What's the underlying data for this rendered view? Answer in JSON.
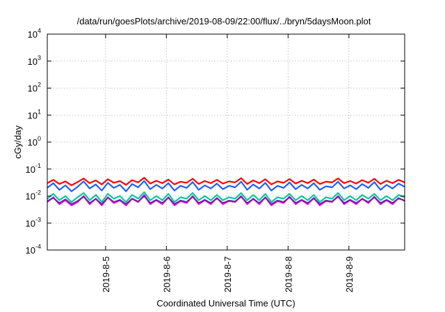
{
  "chart_data": {
    "type": "line",
    "title": "/data/run/goesPlots/archive/2019-08-09/22:00/flux/../bryn/5daysMoon.plot",
    "xlabel": "Coordinated Universal Time (UTC)",
    "ylabel": "cGy/day",
    "yscale": "log",
    "ylim": [
      0.0001,
      10000
    ],
    "xlim": [
      "2019-08-04 01:00",
      "2019-08-09 22:00"
    ],
    "y_tick_labels": [
      {
        "base": "10",
        "exp": "-4"
      },
      {
        "base": "10",
        "exp": "-3"
      },
      {
        "base": "10",
        "exp": "-2"
      },
      {
        "base": "10",
        "exp": "-1"
      },
      {
        "base": "10",
        "exp": "0"
      },
      {
        "base": "10",
        "exp": "1"
      },
      {
        "base": "10",
        "exp": "2"
      },
      {
        "base": "10",
        "exp": "3"
      },
      {
        "base": "10",
        "exp": "4"
      }
    ],
    "x_ticks": [
      {
        "date": "2019-08-05",
        "label": "2019-8-5"
      },
      {
        "date": "2019-08-06",
        "label": "2019-8-6"
      },
      {
        "date": "2019-08-07",
        "label": "2019-8-7"
      },
      {
        "date": "2019-08-08",
        "label": "2019-8-8"
      },
      {
        "date": "2019-08-09",
        "label": "2019-8-9"
      }
    ],
    "grid": true,
    "series": [
      {
        "color": "#ff0000",
        "values": [
          0.03,
          0.04,
          0.028,
          0.035,
          0.025,
          0.033,
          0.045,
          0.03,
          0.038,
          0.027,
          0.042,
          0.031,
          0.036,
          0.026,
          0.039,
          0.032,
          0.048,
          0.029,
          0.037,
          0.03,
          0.041,
          0.027,
          0.034,
          0.031,
          0.044,
          0.028,
          0.036,
          0.03,
          0.04,
          0.029,
          0.035,
          0.032,
          0.046,
          0.028,
          0.038,
          0.03,
          0.042,
          0.027,
          0.035,
          0.031,
          0.043,
          0.029,
          0.037,
          0.03,
          0.041,
          0.028,
          0.034,
          0.032,
          0.045,
          0.03,
          0.036,
          0.029,
          0.039,
          0.031,
          0.044,
          0.028,
          0.037,
          0.03,
          0.04,
          0.032
        ]
      },
      {
        "color": "#1f5fff",
        "values": [
          0.02,
          0.03,
          0.017,
          0.025,
          0.015,
          0.022,
          0.035,
          0.019,
          0.027,
          0.016,
          0.031,
          0.02,
          0.026,
          0.015,
          0.028,
          0.021,
          0.036,
          0.018,
          0.026,
          0.019,
          0.03,
          0.016,
          0.024,
          0.02,
          0.033,
          0.017,
          0.025,
          0.019,
          0.029,
          0.018,
          0.024,
          0.021,
          0.034,
          0.017,
          0.027,
          0.019,
          0.031,
          0.016,
          0.024,
          0.02,
          0.032,
          0.018,
          0.026,
          0.019,
          0.03,
          0.017,
          0.023,
          0.021,
          0.034,
          0.019,
          0.025,
          0.018,
          0.028,
          0.02,
          0.033,
          0.017,
          0.026,
          0.019,
          0.029,
          0.022
        ]
      },
      {
        "color": "#00c8a0",
        "values": [
          0.008,
          0.012,
          0.007,
          0.01,
          0.006,
          0.009,
          0.013,
          0.007,
          0.011,
          0.006,
          0.012,
          0.008,
          0.01,
          0.006,
          0.011,
          0.008,
          0.014,
          0.007,
          0.01,
          0.007,
          0.012,
          0.006,
          0.009,
          0.008,
          0.013,
          0.007,
          0.01,
          0.007,
          0.011,
          0.007,
          0.009,
          0.008,
          0.013,
          0.007,
          0.011,
          0.007,
          0.012,
          0.006,
          0.009,
          0.008,
          0.012,
          0.007,
          0.01,
          0.007,
          0.011,
          0.006,
          0.009,
          0.008,
          0.013,
          0.007,
          0.01,
          0.007,
          0.011,
          0.008,
          0.012,
          0.007,
          0.01,
          0.007,
          0.011,
          0.009
        ]
      },
      {
        "color": "#ff00ff",
        "values": [
          0.006,
          0.009,
          0.005,
          0.007,
          0.0045,
          0.006,
          0.01,
          0.005,
          0.008,
          0.0045,
          0.009,
          0.0055,
          0.007,
          0.0045,
          0.008,
          0.006,
          0.011,
          0.005,
          0.007,
          0.005,
          0.009,
          0.0045,
          0.0065,
          0.0055,
          0.01,
          0.005,
          0.007,
          0.005,
          0.0085,
          0.005,
          0.0065,
          0.006,
          0.01,
          0.005,
          0.008,
          0.005,
          0.009,
          0.0045,
          0.0065,
          0.0055,
          0.0095,
          0.005,
          0.007,
          0.005,
          0.0085,
          0.0045,
          0.0065,
          0.006,
          0.01,
          0.005,
          0.007,
          0.005,
          0.008,
          0.0055,
          0.0095,
          0.005,
          0.007,
          0.005,
          0.0085,
          0.0065
        ]
      },
      {
        "color": "#7a1fa0",
        "values": [
          0.0065,
          0.0085,
          0.0055,
          0.0075,
          0.005,
          0.0065,
          0.0095,
          0.0055,
          0.0078,
          0.005,
          0.0088,
          0.006,
          0.0072,
          0.005,
          0.008,
          0.0062,
          0.01,
          0.0055,
          0.0072,
          0.0055,
          0.0088,
          0.005,
          0.0068,
          0.006,
          0.0095,
          0.0055,
          0.0072,
          0.0055,
          0.0082,
          0.0055,
          0.0068,
          0.0062,
          0.0095,
          0.0055,
          0.0078,
          0.0055,
          0.0088,
          0.005,
          0.0068,
          0.006,
          0.009,
          0.0055,
          0.0072,
          0.0055,
          0.0082,
          0.005,
          0.0068,
          0.0062,
          0.0095,
          0.0055,
          0.0072,
          0.0055,
          0.0078,
          0.006,
          0.009,
          0.0055,
          0.0072,
          0.0055,
          0.0082,
          0.0068
        ]
      }
    ]
  }
}
